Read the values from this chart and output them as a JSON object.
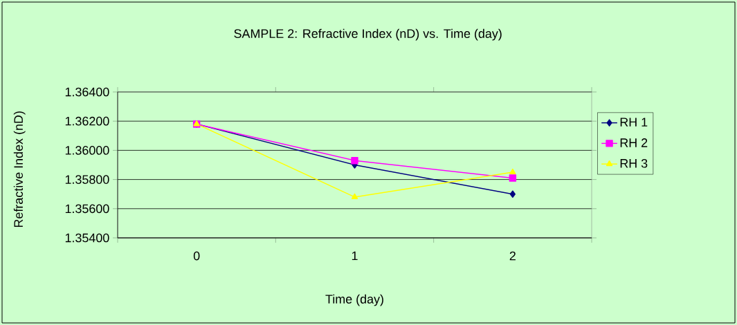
{
  "chart_data": {
    "type": "line",
    "title": "SAMPLE 2: Refractive Index (nD) vs. Time (day)",
    "xlabel": "Time (day)",
    "ylabel": "Refractive Index (nD)",
    "categories": [
      "0",
      "1",
      "2"
    ],
    "series": [
      {
        "name": "RH 1",
        "color": "#000080",
        "marker": "diamond",
        "values": [
          1.3618,
          1.359,
          1.357
        ]
      },
      {
        "name": "RH 2",
        "color": "#ff00ff",
        "marker": "square",
        "values": [
          1.3618,
          1.3593,
          1.3581
        ]
      },
      {
        "name": "RH 3",
        "color": "#ffff00",
        "marker": "triangle",
        "values": [
          1.3618,
          1.3568,
          1.3585
        ]
      }
    ],
    "ylim": [
      1.354,
      1.364
    ],
    "yticks": [
      {
        "value": 1.354,
        "label": "1.35400"
      },
      {
        "value": 1.356,
        "label": "1.35600"
      },
      {
        "value": 1.358,
        "label": "1.35800"
      },
      {
        "value": 1.36,
        "label": "1.36000"
      },
      {
        "value": 1.362,
        "label": "1.36200"
      },
      {
        "value": 1.364,
        "label": "1.36400"
      }
    ],
    "grid": "y",
    "legend": "right",
    "line_style": "solid"
  }
}
